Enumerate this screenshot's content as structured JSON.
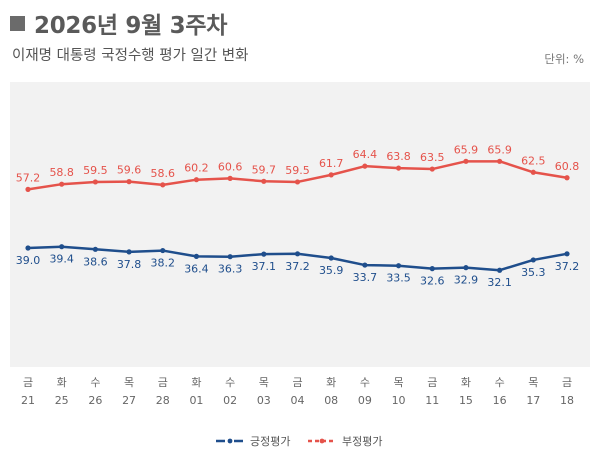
{
  "header": {
    "title": "2026년 9월 3주차",
    "subtitle": "이재명 대통령 국정수행 평가 일간 변화",
    "unit": "단위: %"
  },
  "colors": {
    "positive": "#1f4e8c",
    "negative": "#e5534b",
    "plot_bg": "#f2f2f2"
  },
  "chart_data": {
    "type": "line",
    "categories": [
      {
        "day": "금",
        "date": "21"
      },
      {
        "day": "화",
        "date": "25"
      },
      {
        "day": "수",
        "date": "26"
      },
      {
        "day": "목",
        "date": "27"
      },
      {
        "day": "금",
        "date": "28"
      },
      {
        "day": "화",
        "date": "01"
      },
      {
        "day": "수",
        "date": "02"
      },
      {
        "day": "목",
        "date": "03"
      },
      {
        "day": "금",
        "date": "04"
      },
      {
        "day": "화",
        "date": "08"
      },
      {
        "day": "수",
        "date": "09"
      },
      {
        "day": "목",
        "date": "10"
      },
      {
        "day": "금",
        "date": "11"
      },
      {
        "day": "화",
        "date": "15"
      },
      {
        "day": "수",
        "date": "16"
      },
      {
        "day": "목",
        "date": "17"
      },
      {
        "day": "금",
        "date": "18"
      }
    ],
    "series": [
      {
        "name": "긍정평가",
        "color": "#1f4e8c",
        "values": [
          39.0,
          39.4,
          38.6,
          37.8,
          38.2,
          36.4,
          36.3,
          37.1,
          37.2,
          35.9,
          33.7,
          33.5,
          32.6,
          32.9,
          32.1,
          35.3,
          37.2
        ],
        "labels": [
          "39.0",
          "39.4",
          "38.6",
          "37.8",
          "38.2",
          "36.4",
          "36.3",
          "37.1",
          "37.2",
          "35.9",
          "33.7",
          "33.5",
          "32.6",
          "32.9",
          "32.1",
          "35.3",
          "37.2"
        ]
      },
      {
        "name": "부정평가",
        "color": "#e5534b",
        "values": [
          57.2,
          58.8,
          59.5,
          59.6,
          58.6,
          60.2,
          60.6,
          59.7,
          59.5,
          61.7,
          64.4,
          63.8,
          63.5,
          65.9,
          65.9,
          62.5,
          60.8
        ],
        "labels": [
          "57.2",
          "58.8",
          "59.5",
          "59.6",
          "58.6",
          "60.2",
          "60.6",
          "59.7",
          "59.5",
          "61.7",
          "64.4",
          "63.8",
          "63.5",
          "65.9",
          "65.9",
          "62.5",
          "60.8"
        ]
      }
    ],
    "ylim": [
      0,
      100
    ],
    "grid": false,
    "legend": "bottom-center"
  }
}
